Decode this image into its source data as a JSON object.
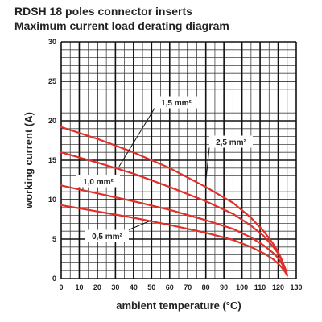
{
  "chart_data": {
    "type": "line",
    "title": "RDSH 18 poles connector inserts",
    "subtitle": "Maximum current load derating diagram",
    "xlabel": "ambient temperature (°C)",
    "ylabel": "working current (A)",
    "xlim": [
      0,
      130
    ],
    "ylim": [
      0,
      30
    ],
    "x_ticks": [
      "0",
      "10",
      "20",
      "30",
      "40",
      "50",
      "60",
      "70",
      "80",
      "90",
      "100",
      "110",
      "120",
      "130"
    ],
    "y_ticks": [
      "0",
      "5",
      "10",
      "15",
      "20",
      "25",
      "30"
    ],
    "grid": true,
    "minor_grid_step_x": 5,
    "minor_grid_step_y": 1,
    "series": [
      {
        "name": "2,5 mm²",
        "color": "#e0302a",
        "x": [
          0,
          20,
          40,
          60,
          80,
          95,
          105,
          112,
          117,
          120,
          122,
          124,
          125
        ],
        "y": [
          19.2,
          17.7,
          16.0,
          14.0,
          11.6,
          9.6,
          7.7,
          6.0,
          4.5,
          3.4,
          2.4,
          1.2,
          0.4
        ]
      },
      {
        "name": "1,5 mm²",
        "color": "#e0302a",
        "x": [
          0,
          20,
          40,
          60,
          80,
          95,
          105,
          112,
          117,
          120,
          122,
          124,
          125
        ],
        "y": [
          16.0,
          14.7,
          13.3,
          11.6,
          9.8,
          8.2,
          6.7,
          5.4,
          4.1,
          3.2,
          2.3,
          1.2,
          0.4
        ]
      },
      {
        "name": "1,0 mm²",
        "color": "#e0302a",
        "x": [
          0,
          20,
          40,
          60,
          80,
          95,
          105,
          112,
          117,
          120,
          122,
          124,
          125
        ],
        "y": [
          11.8,
          10.8,
          9.8,
          8.7,
          7.4,
          6.3,
          5.2,
          4.2,
          3.3,
          2.6,
          1.9,
          1.0,
          0.4
        ]
      },
      {
        "name": "0,5 mm²",
        "color": "#e0302a",
        "x": [
          0,
          20,
          40,
          60,
          80,
          95,
          105,
          112,
          117,
          120,
          122,
          124,
          125
        ],
        "y": [
          9.3,
          8.5,
          7.7,
          6.8,
          5.8,
          4.9,
          4.0,
          3.2,
          2.5,
          1.9,
          1.4,
          0.8,
          0.4
        ]
      }
    ],
    "annotations": [
      {
        "text": "1,5 mm²",
        "points_to_series": "1,5 mm²",
        "x": 32,
        "y": 14.2
      },
      {
        "text": "2,5 mm²",
        "points_to_series": "2,5 mm²",
        "x": 80,
        "y": 12.3
      },
      {
        "text": "1,0 mm²",
        "points_to_series": "1,0 mm²",
        "x": 12,
        "y": 11.3
      },
      {
        "text": "0,5 mm²",
        "points_to_series": "0,5 mm²",
        "x": 50,
        "y": 7.4
      }
    ]
  }
}
